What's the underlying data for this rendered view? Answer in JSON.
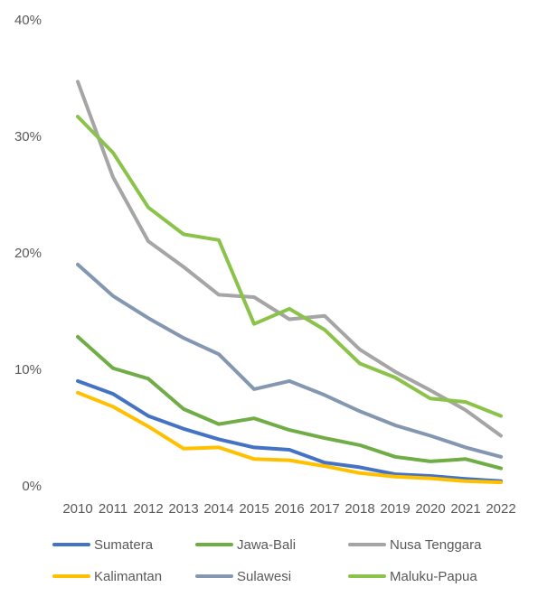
{
  "chart_data": {
    "type": "line",
    "title": "",
    "xlabel": "",
    "ylabel": "",
    "x": [
      "2010",
      "2011",
      "2012",
      "2013",
      "2014",
      "2015",
      "2016",
      "2017",
      "2018",
      "2019",
      "2020",
      "2021",
      "2022"
    ],
    "ylim": [
      0,
      40
    ],
    "yticks": [
      0,
      10,
      20,
      30,
      40
    ],
    "ytick_labels": [
      "0%",
      "10%",
      "20%",
      "30%",
      "40%"
    ],
    "grid": false,
    "legend_position": "bottom",
    "series": [
      {
        "name": "Sumatera",
        "color": "#4472C4",
        "values": [
          9.0,
          7.9,
          6.0,
          4.9,
          4.0,
          3.3,
          3.1,
          2.0,
          1.6,
          1.0,
          0.85,
          0.6,
          0.4
        ]
      },
      {
        "name": "Jawa-Bali",
        "color": "#70AD47",
        "values": [
          12.8,
          10.1,
          9.2,
          6.6,
          5.3,
          5.8,
          4.8,
          4.1,
          3.5,
          2.5,
          2.1,
          2.3,
          1.5
        ]
      },
      {
        "name": "Nusa Tenggara",
        "color": "#A5A5A5",
        "values": [
          34.7,
          26.5,
          21.0,
          18.8,
          16.4,
          16.2,
          14.3,
          14.6,
          11.7,
          9.8,
          8.2,
          6.5,
          4.3
        ]
      },
      {
        "name": "Kalimantan",
        "color": "#FFC000",
        "values": [
          8.0,
          6.8,
          5.1,
          3.2,
          3.3,
          2.3,
          2.2,
          1.7,
          1.1,
          0.8,
          0.65,
          0.4,
          0.3
        ]
      },
      {
        "name": "Sulawesi",
        "color": "#8497B0",
        "values": [
          19.0,
          16.3,
          14.4,
          12.7,
          11.3,
          8.3,
          9.0,
          7.8,
          6.4,
          5.2,
          4.3,
          3.3,
          2.5
        ]
      },
      {
        "name": "Maluku-Papua",
        "color": "#8BC34A",
        "values": [
          31.7,
          28.6,
          23.9,
          21.6,
          21.1,
          13.9,
          15.2,
          13.4,
          10.5,
          9.3,
          7.5,
          7.2,
          6.0
        ]
      }
    ]
  }
}
